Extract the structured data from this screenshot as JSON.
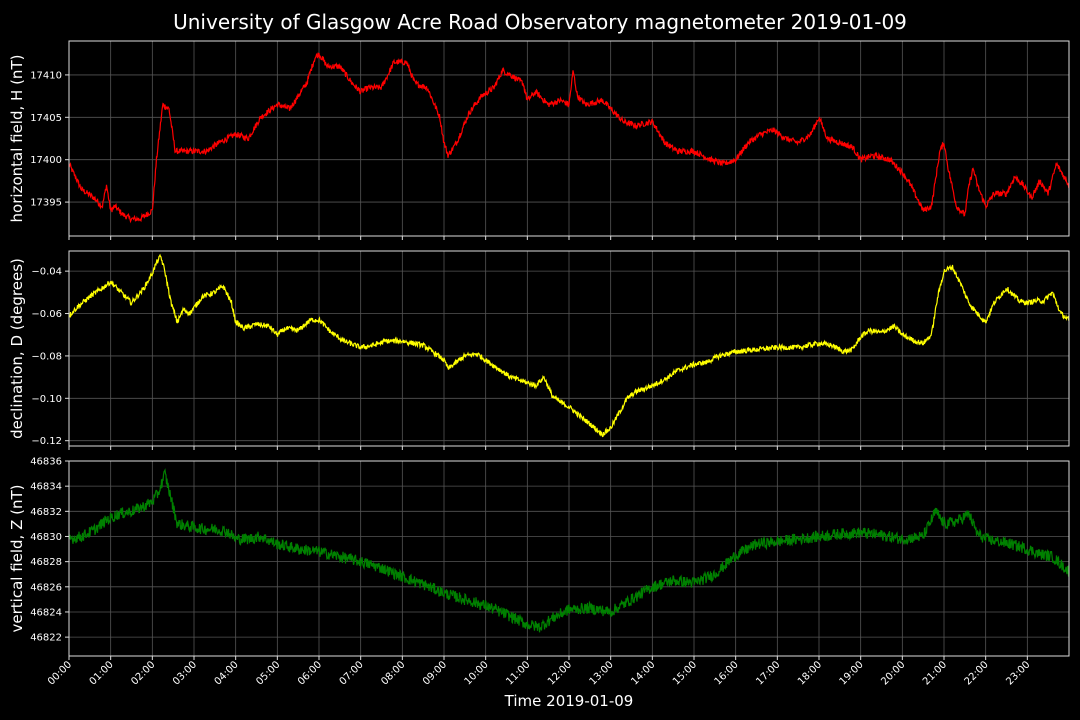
{
  "chart_data": {
    "type": "line",
    "title": "University of Glasgow Acre Road Observatory magnetometer 2019-01-09",
    "xlabel": "Time 2019-01-09",
    "x_unit": "hours",
    "xlim": [
      0,
      24
    ],
    "x_ticks": [
      "00:00",
      "01:00",
      "02:00",
      "03:00",
      "04:00",
      "05:00",
      "06:00",
      "07:00",
      "08:00",
      "09:00",
      "10:00",
      "11:00",
      "12:00",
      "13:00",
      "14:00",
      "15:00",
      "16:00",
      "17:00",
      "18:00",
      "19:00",
      "20:00",
      "21:00",
      "22:00",
      "23:00"
    ],
    "grid": true,
    "panels": [
      {
        "name": "H",
        "ylabel": "horizontal field, H (nT)",
        "color": "#ff0000",
        "ylim": [
          17391.0,
          17414.0
        ],
        "y_ticks": [
          17395,
          17400,
          17405,
          17410
        ],
        "y_tick_labels": [
          "17395",
          "17400",
          "17405",
          "17410"
        ],
        "noise": 0.35,
        "x": [
          0,
          0.3,
          0.6,
          0.8,
          0.9,
          1.0,
          1.1,
          1.3,
          1.5,
          1.7,
          2.0,
          2.1,
          2.25,
          2.4,
          2.55,
          2.7,
          3.0,
          3.3,
          3.6,
          4.0,
          4.3,
          4.6,
          5.0,
          5.3,
          5.7,
          5.9,
          6.0,
          6.2,
          6.5,
          6.8,
          7.0,
          7.2,
          7.5,
          7.8,
          8.1,
          8.3,
          8.6,
          8.9,
          9.0,
          9.1,
          9.3,
          9.6,
          9.9,
          10.2,
          10.4,
          10.6,
          10.9,
          11.0,
          11.2,
          11.5,
          11.8,
          12.0,
          12.1,
          12.2,
          12.4,
          12.8,
          13.0,
          13.3,
          13.6,
          14.0,
          14.3,
          14.6,
          15.0,
          15.4,
          15.7,
          16.0,
          16.3,
          16.6,
          16.9,
          17.2,
          17.5,
          17.8,
          18.0,
          18.2,
          18.5,
          18.8,
          19.0,
          19.3,
          19.7,
          20.0,
          20.2,
          20.5,
          20.7,
          20.9,
          21.0,
          21.1,
          21.3,
          21.5,
          21.6,
          21.7,
          21.8,
          22.0,
          22.2,
          22.5,
          22.7,
          22.9,
          23.1,
          23.3,
          23.5,
          23.7,
          24.0
        ],
        "y": [
          17399.5,
          17396.5,
          17395.5,
          17394.5,
          17397.0,
          17394.0,
          17394.5,
          17393.5,
          17393.0,
          17393.0,
          17394.0,
          17400.0,
          17406.5,
          17406.0,
          17401.0,
          17401.0,
          17401.0,
          17401.0,
          17402.0,
          17403.0,
          17402.5,
          17405.0,
          17406.5,
          17406.0,
          17409.0,
          17412.0,
          17412.5,
          17411.0,
          17411.0,
          17409.0,
          17408.0,
          17408.5,
          17408.5,
          17411.5,
          17411.5,
          17409.0,
          17408.5,
          17405.0,
          17402.0,
          17400.5,
          17402.0,
          17405.5,
          17407.5,
          17408.5,
          17410.5,
          17410.0,
          17409.0,
          17407.0,
          17408.0,
          17406.5,
          17407.0,
          17406.5,
          17410.5,
          17407.5,
          17406.5,
          17407.0,
          17406.0,
          17404.5,
          17404.0,
          17404.5,
          17402.0,
          17401.0,
          17401.0,
          17400.0,
          17399.5,
          17400.0,
          17402.0,
          17403.0,
          17403.5,
          17402.5,
          17402.0,
          17403.0,
          17405.0,
          17402.5,
          17402.0,
          17401.5,
          17400.0,
          17400.5,
          17400.0,
          17398.5,
          17397.0,
          17394.0,
          17394.5,
          17401.0,
          17402.0,
          17399.0,
          17394.5,
          17393.5,
          17397.0,
          17399.0,
          17397.0,
          17394.5,
          17396.0,
          17396.0,
          17398.0,
          17397.0,
          17395.5,
          17397.5,
          17396.0,
          17399.5,
          17397.0
        ]
      },
      {
        "name": "D",
        "ylabel": "declination, D (degrees)",
        "color": "#ffff00",
        "ylim": [
          -0.1225,
          -0.0305
        ],
        "y_ticks": [
          -0.12,
          -0.1,
          -0.08,
          -0.06,
          -0.04
        ],
        "y_tick_labels": [
          "−0.12",
          "−0.10",
          "−0.08",
          "−0.06",
          "−0.04"
        ],
        "noise": 0.0012,
        "x": [
          0,
          0.2,
          0.5,
          0.8,
          1.0,
          1.3,
          1.5,
          1.8,
          2.0,
          2.1,
          2.2,
          2.3,
          2.45,
          2.6,
          2.75,
          2.9,
          3.2,
          3.5,
          3.7,
          3.9,
          4.0,
          4.2,
          4.5,
          4.8,
          5.0,
          5.2,
          5.5,
          5.8,
          6.0,
          6.3,
          6.6,
          7.0,
          7.3,
          7.6,
          8.0,
          8.5,
          8.8,
          9.0,
          9.1,
          9.3,
          9.5,
          9.8,
          10.0,
          10.3,
          10.6,
          10.9,
          11.2,
          11.4,
          11.6,
          11.8,
          12.0,
          12.3,
          12.5,
          12.8,
          13.0,
          13.2,
          13.4,
          13.6,
          14.0,
          14.3,
          14.6,
          15.0,
          15.3,
          15.6,
          16.0,
          16.5,
          17.0,
          17.5,
          18.0,
          18.3,
          18.6,
          18.8,
          19.0,
          19.2,
          19.5,
          19.8,
          20.0,
          20.3,
          20.5,
          20.7,
          20.85,
          21.0,
          21.2,
          21.4,
          21.6,
          21.8,
          22.0,
          22.2,
          22.5,
          22.8,
          23.0,
          23.2,
          23.4,
          23.6,
          23.8,
          24.0
        ],
        "y": [
          -0.061,
          -0.057,
          -0.052,
          -0.048,
          -0.045,
          -0.051,
          -0.055,
          -0.048,
          -0.041,
          -0.036,
          -0.033,
          -0.04,
          -0.055,
          -0.064,
          -0.058,
          -0.06,
          -0.052,
          -0.05,
          -0.047,
          -0.055,
          -0.064,
          -0.067,
          -0.065,
          -0.066,
          -0.07,
          -0.067,
          -0.068,
          -0.063,
          -0.063,
          -0.069,
          -0.073,
          -0.076,
          -0.075,
          -0.073,
          -0.073,
          -0.075,
          -0.079,
          -0.082,
          -0.086,
          -0.083,
          -0.08,
          -0.079,
          -0.082,
          -0.086,
          -0.09,
          -0.092,
          -0.094,
          -0.09,
          -0.099,
          -0.102,
          -0.104,
          -0.109,
          -0.112,
          -0.117,
          -0.114,
          -0.107,
          -0.1,
          -0.097,
          -0.094,
          -0.091,
          -0.087,
          -0.084,
          -0.083,
          -0.08,
          -0.078,
          -0.077,
          -0.076,
          -0.076,
          -0.074,
          -0.075,
          -0.078,
          -0.077,
          -0.071,
          -0.068,
          -0.069,
          -0.066,
          -0.07,
          -0.073,
          -0.074,
          -0.07,
          -0.052,
          -0.04,
          -0.038,
          -0.046,
          -0.055,
          -0.06,
          -0.064,
          -0.055,
          -0.048,
          -0.054,
          -0.055,
          -0.054,
          -0.054,
          -0.05,
          -0.06,
          -0.063
        ]
      },
      {
        "name": "Z",
        "ylabel": "vertical field, Z (nT)",
        "color": "#008000",
        "ylim": [
          46820.5,
          46836.0
        ],
        "y_ticks": [
          46822,
          46824,
          46826,
          46828,
          46830,
          46832,
          46834,
          46836
        ],
        "y_tick_labels": [
          "46822",
          "46824",
          "46826",
          "46828",
          "46830",
          "46832",
          "46834",
          "46836"
        ],
        "noise": 0.45,
        "x": [
          0,
          0.3,
          0.6,
          0.9,
          1.2,
          1.5,
          1.8,
          2.0,
          2.15,
          2.3,
          2.45,
          2.6,
          2.9,
          3.2,
          3.5,
          3.8,
          4.0,
          4.3,
          4.6,
          5.0,
          5.5,
          6.0,
          6.5,
          7.0,
          7.5,
          8.0,
          8.5,
          9.0,
          9.5,
          10.0,
          10.5,
          11.0,
          11.3,
          11.6,
          12.0,
          12.5,
          13.0,
          13.5,
          14.0,
          14.5,
          15.0,
          15.5,
          16.0,
          16.5,
          17.0,
          17.5,
          18.0,
          18.5,
          19.0,
          19.5,
          20.0,
          20.5,
          20.8,
          21.0,
          21.3,
          21.6,
          21.8,
          22.0,
          22.3,
          22.6,
          23.0,
          23.3,
          23.6,
          24.0
        ],
        "y": [
          46829.8,
          46830.0,
          46830.5,
          46831.3,
          46831.8,
          46832.0,
          46832.4,
          46832.8,
          46833.5,
          46835.0,
          46833.0,
          46831.0,
          46830.8,
          46830.6,
          46830.6,
          46830.4,
          46829.8,
          46829.8,
          46830.0,
          46829.4,
          46829.0,
          46828.8,
          46828.4,
          46828.0,
          46827.5,
          46826.8,
          46826.2,
          46825.5,
          46825.0,
          46824.5,
          46823.8,
          46823.0,
          46822.8,
          46823.5,
          46824.2,
          46824.3,
          46824.0,
          46825.0,
          46826.0,
          46826.5,
          46826.3,
          46827.0,
          46828.5,
          46829.4,
          46829.6,
          46829.8,
          46830.0,
          46830.2,
          46830.3,
          46830.1,
          46829.8,
          46830.0,
          46832.0,
          46831.0,
          46831.2,
          46831.8,
          46830.2,
          46829.8,
          46829.6,
          46829.4,
          46829.0,
          46828.6,
          46828.4,
          46827.2
        ]
      }
    ]
  }
}
